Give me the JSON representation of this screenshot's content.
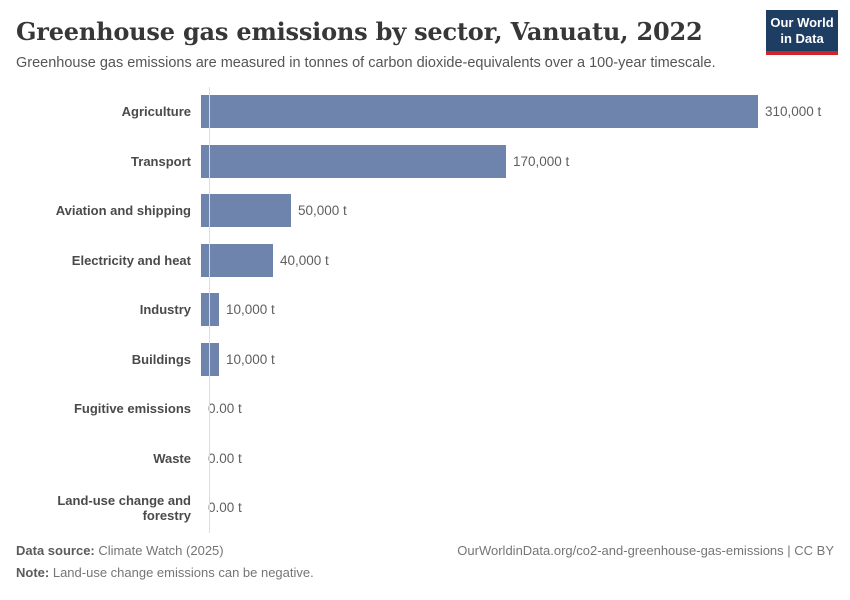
{
  "header": {
    "title": "Greenhouse gas emissions by sector, Vanuatu, 2022",
    "subtitle": "Greenhouse gas emissions are measured in tonnes of carbon dioxide-equivalents over a 100-year timescale.",
    "logo": {
      "line1": "Our World",
      "line2": "in Data",
      "bg_color": "#1d3d63",
      "accent_color": "#d1232a"
    }
  },
  "chart_data": {
    "type": "bar",
    "orientation": "horizontal",
    "title": "Greenhouse gas emissions by sector, Vanuatu, 2022",
    "unit": "t",
    "categories": [
      "Agriculture",
      "Transport",
      "Aviation and shipping",
      "Electricity and heat",
      "Industry",
      "Buildings",
      "Fugitive emissions",
      "Waste",
      "Land-use change and forestry"
    ],
    "values": [
      310000,
      170000,
      50000,
      40000,
      10000,
      10000,
      0,
      0,
      0
    ],
    "value_labels": [
      "310,000 t",
      "170,000 t",
      "50,000 t",
      "40,000 t",
      "10,000 t",
      "10,000 t",
      "0.00 t",
      "0.00 t",
      "0.00 t"
    ],
    "xlim": [
      0,
      310000
    ],
    "bar_color": "#6e84ad",
    "grid": false,
    "legend": "none"
  },
  "footer": {
    "source_label": "Data source:",
    "source_text": "Climate Watch (2025)",
    "note_label": "Note:",
    "note_text": "Land-use change emissions can be negative.",
    "link": "OurWorldinData.org/co2-and-greenhouse-gas-emissions | CC BY"
  }
}
